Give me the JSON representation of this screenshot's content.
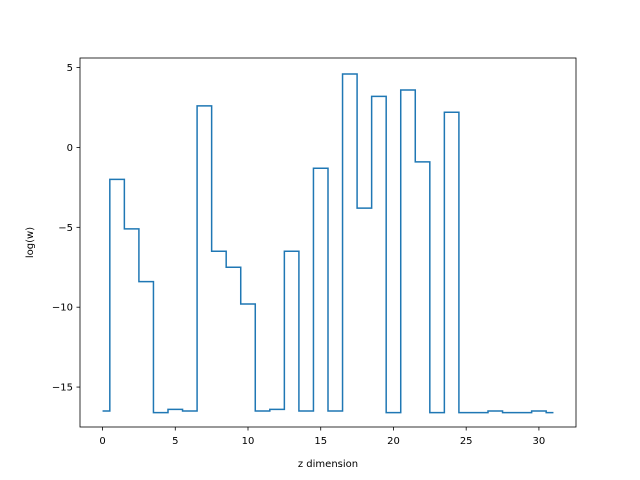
{
  "chart_data": {
    "type": "line",
    "drawstyle": "steps-mid",
    "title": "",
    "xlabel": "z dimension",
    "ylabel": "log(w)",
    "xlim": [
      -1.55,
      32.55
    ],
    "ylim": [
      -17.5,
      5.6
    ],
    "xticks": [
      0,
      5,
      10,
      15,
      20,
      25,
      30
    ],
    "yticks": [
      -15,
      -10,
      -5,
      0,
      5
    ],
    "grid": false,
    "line_color": "#1f77b4",
    "series": [
      {
        "x": [
          0,
          1,
          2,
          3,
          4,
          5,
          6,
          7,
          8,
          9,
          10,
          11,
          12,
          13,
          14,
          15,
          16,
          17,
          18,
          19,
          20,
          21,
          22,
          23,
          24,
          25,
          26,
          27,
          28,
          29,
          30,
          31
        ],
        "y": [
          -16.5,
          -2.0,
          -5.1,
          -8.4,
          -16.6,
          -16.4,
          -16.5,
          2.6,
          -6.5,
          -7.5,
          -9.8,
          -16.5,
          -16.4,
          -6.5,
          -16.5,
          -1.3,
          -16.5,
          4.6,
          -3.8,
          3.2,
          -16.6,
          3.6,
          -0.9,
          -16.6,
          2.2,
          -16.6,
          -16.6,
          -16.5,
          -16.6,
          -16.6,
          -16.5,
          -16.6
        ]
      }
    ]
  }
}
